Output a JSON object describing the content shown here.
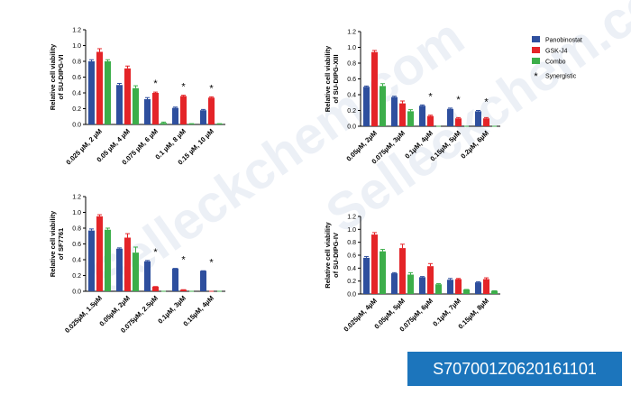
{
  "chart_data": [
    {
      "type": "bar",
      "y_label": [
        "Relative cell viability",
        "of SU-DIPG-VI"
      ],
      "categories": [
        "0.025 µM, 2 µM",
        "0.05 µM, 4 µM",
        "0.075 µM, 6 µM",
        "0.1 µM, 8 µM",
        "0.15 µM, 10 µM"
      ],
      "series": [
        {
          "name": "Panobinostat",
          "color": "#2e4f9e",
          "values": [
            0.8,
            0.5,
            0.32,
            0.21,
            0.18
          ],
          "errors": [
            0.02,
            0.02,
            0.02,
            0.01,
            0.01
          ]
        },
        {
          "name": "GSK-J4",
          "color": "#e42428",
          "values": [
            0.92,
            0.71,
            0.4,
            0.36,
            0.34
          ],
          "errors": [
            0.04,
            0.03,
            0.01,
            0.01,
            0.01
          ]
        },
        {
          "name": "Combo",
          "color": "#3cae4a",
          "values": [
            0.8,
            0.46,
            0.02,
            0.01,
            0.01
          ],
          "errors": [
            0.02,
            0.03,
            0.01,
            0.0,
            0.0
          ]
        }
      ],
      "synergy": [
        null,
        null,
        "*",
        "*",
        "*"
      ],
      "ylim": [
        0,
        1.2
      ],
      "yticks": [
        {
          "value": 0,
          "label": "0.0"
        },
        0.2,
        0.4,
        0.6,
        0.8,
        {
          "value": 1,
          "label": "1.0"
        },
        1.2
      ]
    },
    {
      "type": "bar",
      "y_label": [
        "Relative cell viability",
        "of SU-DIPG-XIII"
      ],
      "categories": [
        "0.05µM, 2µM",
        "0.075µM, 3µM",
        "0.1µM, 4µM",
        "0.15µM, 5µM",
        "0.2µM, 6µM"
      ],
      "series": [
        {
          "name": "Panobinostat",
          "color": "#2e4f9e",
          "values": [
            0.5,
            0.37,
            0.26,
            0.22,
            0.19
          ],
          "errors": [
            0.01,
            0.01,
            0.01,
            0.01,
            0.01
          ]
        },
        {
          "name": "GSK-J4",
          "color": "#e42428",
          "values": [
            0.94,
            0.29,
            0.13,
            0.1,
            0.1
          ],
          "errors": [
            0.02,
            0.03,
            0.01,
            0.01,
            0.01
          ]
        },
        {
          "name": "Combo",
          "color": "#3cae4a",
          "values": [
            0.51,
            0.19,
            0.0,
            0.0,
            0.0
          ],
          "errors": [
            0.03,
            0.02,
            0.0,
            0.0,
            0.0
          ]
        }
      ],
      "synergy": [
        null,
        null,
        "*",
        "*",
        "*"
      ],
      "legend": "right",
      "legend_note": {
        "symbol": "*",
        "label": "Synergistic"
      },
      "ylim": [
        0,
        1.2
      ],
      "yticks": [
        {
          "value": 0,
          "label": "0.0"
        },
        0.2,
        0.4,
        0.6,
        0.8,
        {
          "value": 1,
          "label": "1.0"
        },
        1.2
      ]
    },
    {
      "type": "bar",
      "y_label": [
        "Relative cell viability",
        "of SF7761"
      ],
      "categories": [
        "0.025µM, 1.5µM",
        "0.05µM, 2µM",
        "0.075µM, 2.5µM",
        "0.1µM, 3µM",
        "0.15µM, 4µM"
      ],
      "series": [
        {
          "name": "Panobinostat",
          "color": "#2e4f9e",
          "values": [
            0.77,
            0.54,
            0.38,
            0.29,
            0.26
          ],
          "errors": [
            0.02,
            0.01,
            0.01,
            0.0,
            0.0
          ]
        },
        {
          "name": "GSK-J4",
          "color": "#e42428",
          "values": [
            0.95,
            0.68,
            0.06,
            0.02,
            0.0
          ],
          "errors": [
            0.02,
            0.05,
            0.0,
            0.0,
            0.0
          ]
        },
        {
          "name": "Combo",
          "color": "#3cae4a",
          "values": [
            0.78,
            0.49,
            0.0,
            0.0,
            0.0
          ],
          "errors": [
            0.02,
            0.07,
            0.0,
            0.0,
            0.0
          ]
        }
      ],
      "synergy": [
        null,
        null,
        "*",
        "*",
        "*"
      ],
      "ylim": [
        0,
        1.2
      ],
      "yticks": [
        {
          "value": 0,
          "label": "0.0"
        },
        0.2,
        0.4,
        0.6,
        0.8,
        {
          "value": 1,
          "label": "1.0"
        },
        1.2
      ]
    },
    {
      "type": "bar",
      "y_label": [
        "Relative cell viability",
        "of SU-DIPG-IV"
      ],
      "categories": [
        "0.025µM, 4µM",
        "0.05µM, 5µM",
        "0.075µM, 6µM",
        "0.1µM, 7µM",
        "0.15µM, 8µM"
      ],
      "series": [
        {
          "name": "Panobinostat",
          "color": "#2e4f9e",
          "values": [
            0.56,
            0.32,
            0.26,
            0.22,
            0.18
          ],
          "errors": [
            0.02,
            0.01,
            0.01,
            0.02,
            0.01
          ]
        },
        {
          "name": "GSK-J4",
          "color": "#e42428",
          "values": [
            0.92,
            0.71,
            0.43,
            0.23,
            0.23
          ],
          "errors": [
            0.03,
            0.06,
            0.04,
            0.01,
            0.02
          ]
        },
        {
          "name": "Combo",
          "color": "#3cae4a",
          "values": [
            0.66,
            0.3,
            0.15,
            0.07,
            0.05
          ],
          "errors": [
            0.03,
            0.03,
            0.01,
            0.0,
            0.0
          ]
        }
      ],
      "synergy": [
        null,
        null,
        null,
        null,
        null
      ],
      "ylim": [
        0,
        1.2
      ],
      "yticks": [
        {
          "value": 0,
          "label": "0.0"
        },
        0.2,
        0.4,
        0.6,
        0.8,
        {
          "value": 1,
          "label": "1.0"
        },
        1.2
      ]
    }
  ],
  "watermark": "Selleckchem.com",
  "product_code": "S707001Z0620161101"
}
